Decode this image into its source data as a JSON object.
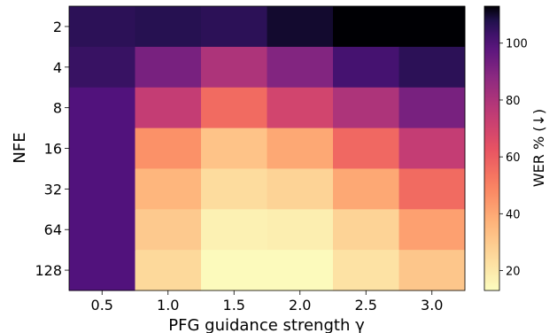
{
  "chart_data": {
    "type": "heatmap",
    "x_label": "PFG guidance strength γ",
    "y_label": "NFE",
    "x_categories": [
      "0.5",
      "1.0",
      "1.5",
      "2.0",
      "2.5",
      "3.0"
    ],
    "y_categories": [
      "2",
      "4",
      "8",
      "16",
      "32",
      "64",
      "128"
    ],
    "values": [
      [
        106,
        107,
        106,
        110,
        113,
        113
      ],
      [
        104,
        92,
        80,
        90,
        102,
        106
      ],
      [
        100,
        74,
        56,
        70,
        80,
        92
      ],
      [
        100,
        46,
        32,
        40,
        57,
        74
      ],
      [
        100,
        36,
        24,
        27,
        40,
        56
      ],
      [
        100,
        30,
        17,
        18,
        27,
        42
      ],
      [
        100,
        25,
        14,
        14,
        22,
        31
      ]
    ],
    "colorbar": {
      "label": "WER % (↓)",
      "ticks": [
        20,
        40,
        60,
        80,
        100
      ],
      "range": [
        13,
        113
      ],
      "colormap": "magma_r"
    },
    "grid": false
  }
}
